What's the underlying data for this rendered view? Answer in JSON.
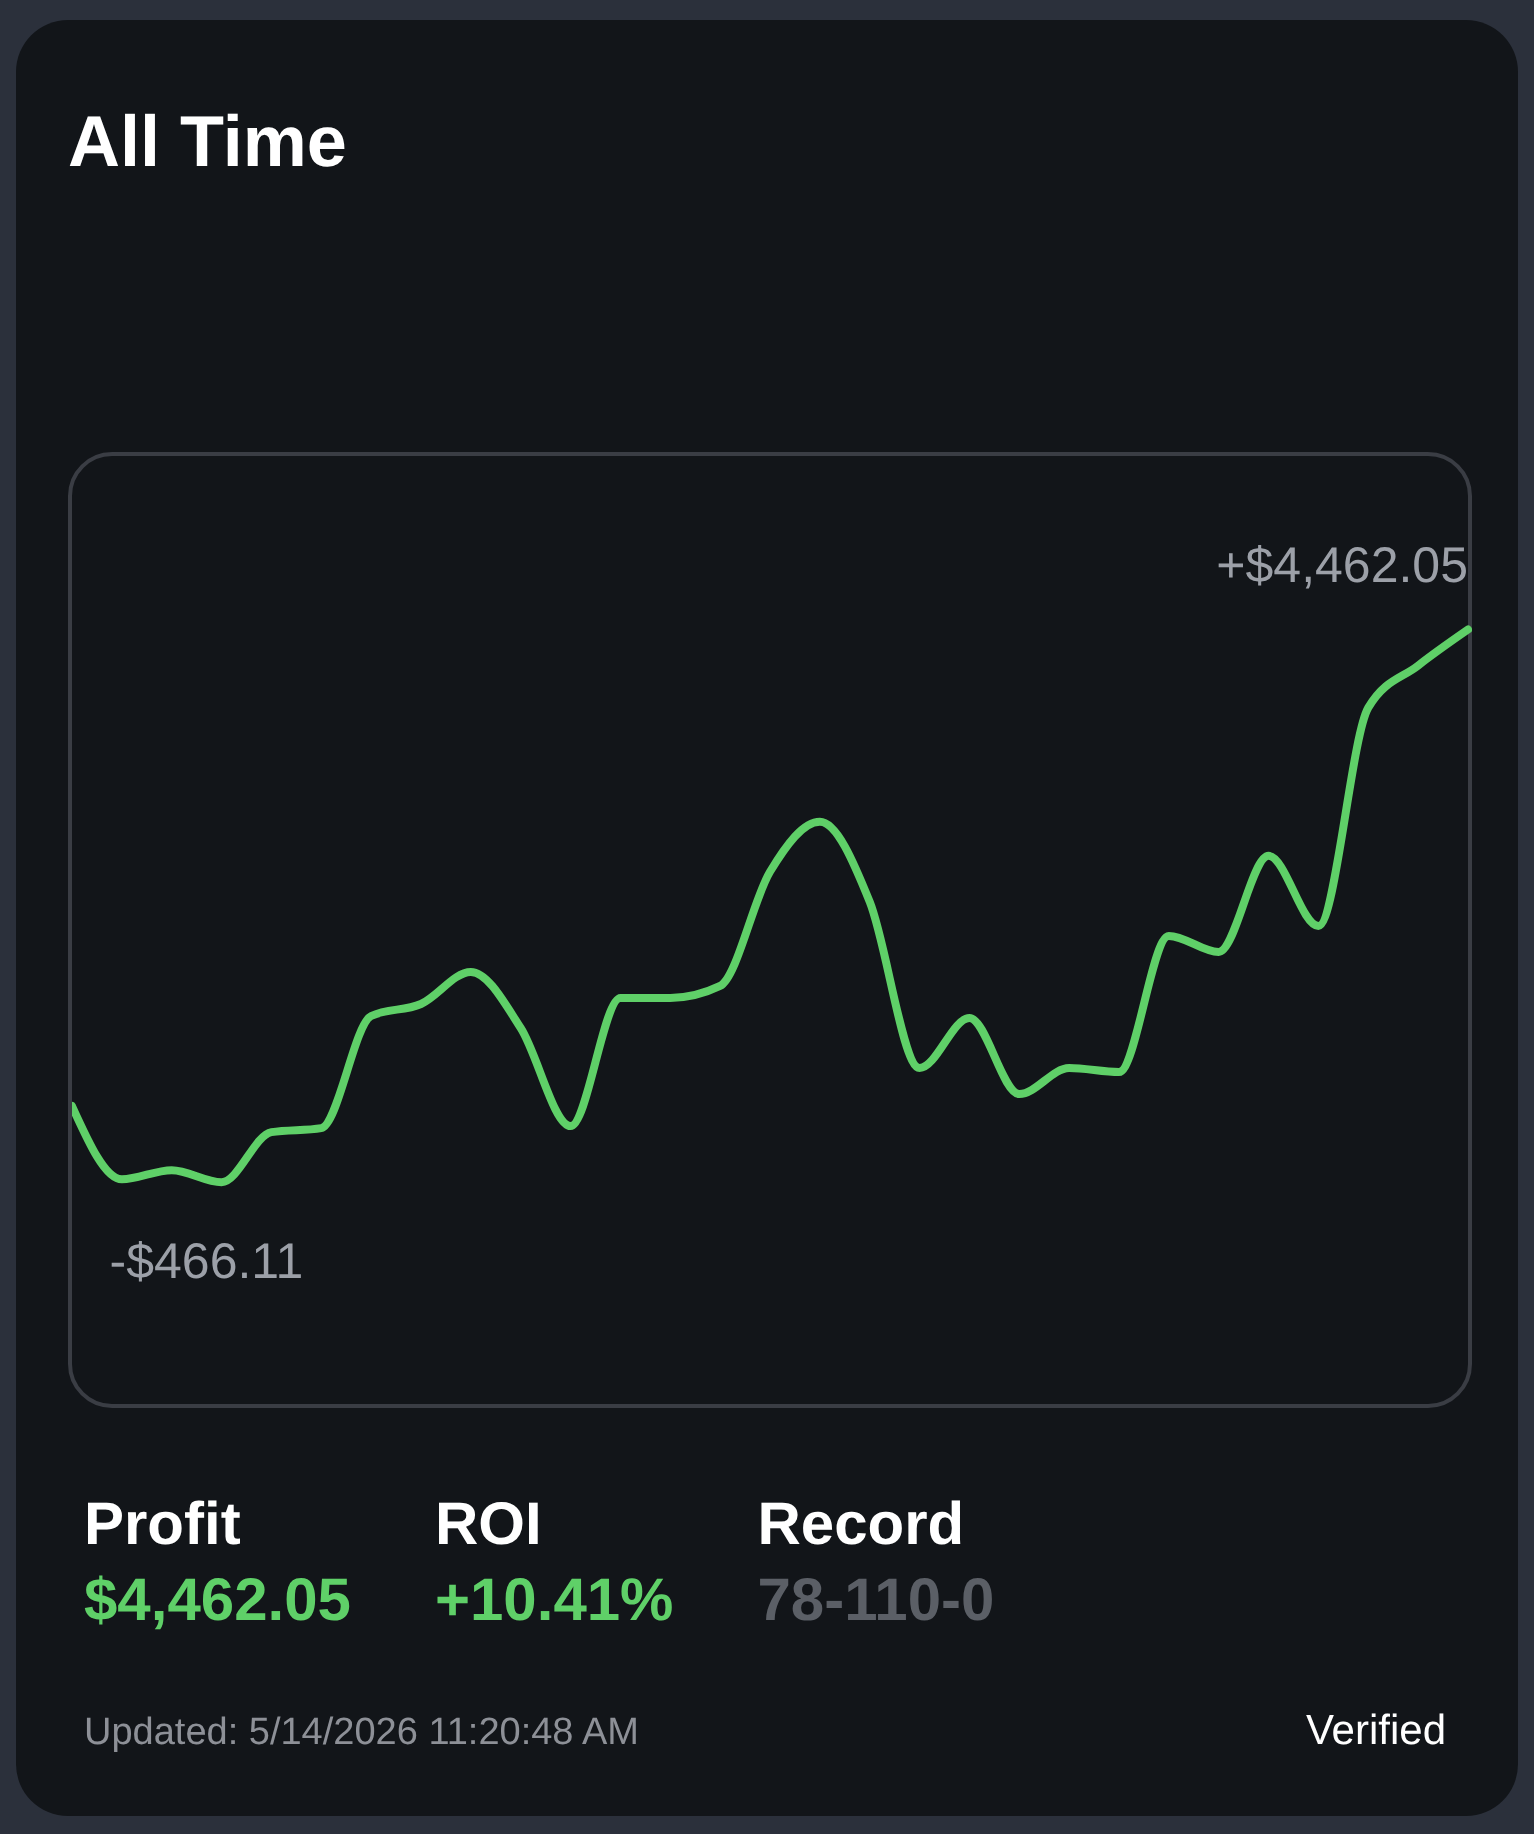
{
  "chart_data": {
    "type": "line",
    "title": "All Time",
    "categories": [
      null,
      null,
      null,
      null,
      null,
      null,
      null,
      null,
      null,
      null,
      null,
      null,
      null,
      null,
      null,
      null,
      null,
      null,
      null,
      null,
      null,
      null,
      null,
      null,
      null,
      null,
      null,
      null,
      null
    ],
    "series": [
      {
        "color": "#5fd068",
        "values": [
          213,
          -440,
          -359,
          -466.11,
          -20,
          16,
          1016,
          1123,
          1409,
          909,
          34,
          1177,
          1177,
          1284,
          2302,
          2748,
          2034,
          552,
          998,
          320,
          552,
          516,
          1730,
          1587,
          2444,
          1819,
          3766,
          4141,
          4462.05
        ],
        "value_labels": [
          null,
          null,
          null,
          "-$466.11",
          null,
          null,
          null,
          null,
          null,
          null,
          null,
          null,
          null,
          null,
          null,
          null,
          null,
          null,
          null,
          null,
          null,
          null,
          null,
          null,
          null,
          null,
          null,
          null,
          "+$4,462.05"
        ]
      }
    ],
    "ylim": [
      -2480,
      6010
    ],
    "tick_labels": false,
    "marker": "none",
    "line_style": "solid",
    "annotations": [
      "Profit",
      "$4,462.05",
      "ROI",
      "+10.41%",
      "Record",
      "78-110-0",
      "Updated: 5/14/2026 11:20:48 AM",
      "Verified"
    ]
  }
}
